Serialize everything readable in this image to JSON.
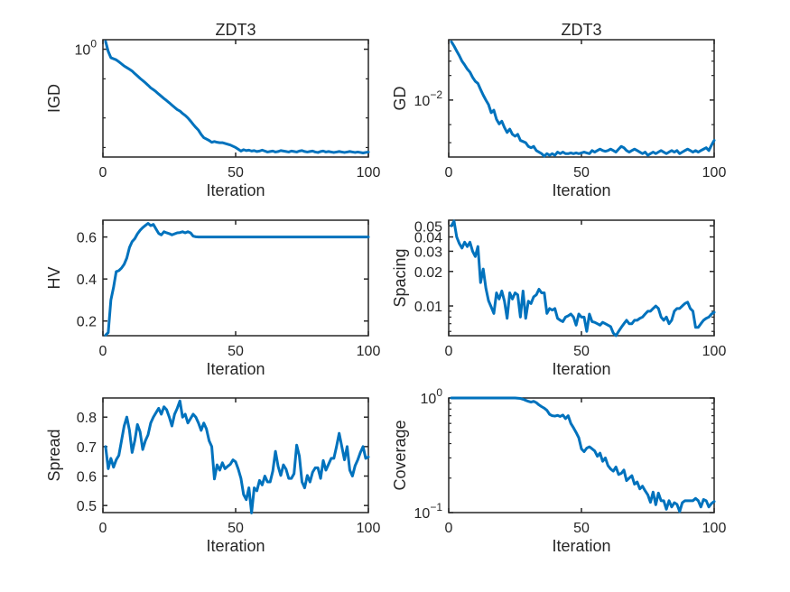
{
  "figure": {
    "background": "#ffffff",
    "line_color": "#0072BD",
    "axis_color": "#262626",
    "text_color": "#262626"
  },
  "chart_data": [
    {
      "type": "line",
      "title": "ZDT3",
      "xlabel": "Iteration",
      "ylabel": "IGD",
      "yscale": "log",
      "xlim": [
        0,
        100
      ],
      "ylim": [
        0.08,
        1.25
      ],
      "xticks": [
        {
          "v": 0,
          "label": "0"
        },
        {
          "v": 50,
          "label": "50"
        },
        {
          "v": 100,
          "label": "100"
        }
      ],
      "yticks": [
        {
          "v": 1,
          "base": "10",
          "exp": "0"
        }
      ],
      "yminor": [
        0.5,
        0.2,
        0.1
      ],
      "x_range": [
        1,
        100
      ],
      "y": [
        1.2,
        0.95,
        0.82,
        0.8,
        0.78,
        0.745,
        0.71,
        0.675,
        0.65,
        0.625,
        0.6,
        0.565,
        0.535,
        0.505,
        0.48,
        0.455,
        0.43,
        0.405,
        0.388,
        0.37,
        0.35,
        0.332,
        0.315,
        0.3,
        0.285,
        0.27,
        0.256,
        0.243,
        0.235,
        0.222,
        0.212,
        0.2,
        0.186,
        0.172,
        0.16,
        0.15,
        0.136,
        0.126,
        0.122,
        0.118,
        0.113,
        0.115,
        0.113,
        0.112,
        0.112,
        0.11,
        0.108,
        0.106,
        0.103,
        0.1,
        0.096,
        0.092,
        0.095,
        0.093,
        0.094,
        0.092,
        0.093,
        0.091,
        0.092,
        0.094,
        0.092,
        0.09,
        0.091,
        0.092,
        0.09,
        0.091,
        0.093,
        0.092,
        0.091,
        0.09,
        0.092,
        0.091,
        0.09,
        0.092,
        0.093,
        0.091,
        0.09,
        0.091,
        0.092,
        0.09,
        0.089,
        0.091,
        0.092,
        0.09,
        0.091,
        0.09,
        0.089,
        0.09,
        0.091,
        0.09,
        0.089,
        0.09,
        0.091,
        0.09,
        0.089,
        0.09,
        0.089,
        0.088,
        0.089,
        0.09
      ]
    },
    {
      "type": "line",
      "title": "ZDT3",
      "xlabel": "Iteration",
      "ylabel": "GD",
      "yscale": "log",
      "xlim": [
        0,
        100
      ],
      "ylim": [
        0.002,
        0.055
      ],
      "xticks": [
        {
          "v": 0,
          "label": "0"
        },
        {
          "v": 50,
          "label": "50"
        },
        {
          "v": 100,
          "label": "100"
        }
      ],
      "yticks": [
        {
          "v": 0.01,
          "base": "10",
          "exp": "-2"
        }
      ],
      "yminor": [
        0.04,
        0.03,
        0.02,
        0.005,
        0.003
      ],
      "x_range": [
        1,
        100
      ],
      "y": [
        0.052,
        0.046,
        0.04,
        0.035,
        0.03,
        0.027,
        0.024,
        0.022,
        0.019,
        0.017,
        0.016,
        0.0135,
        0.0115,
        0.01,
        0.0088,
        0.007,
        0.0075,
        0.0058,
        0.0051,
        0.0055,
        0.0046,
        0.004,
        0.0044,
        0.0038,
        0.0036,
        0.0038,
        0.0032,
        0.0031,
        0.003,
        0.0027,
        0.0026,
        0.0027,
        0.0024,
        0.0023,
        0.0022,
        0.00205,
        0.0022,
        0.0021,
        0.0022,
        0.0021,
        0.0023,
        0.0022,
        0.0023,
        0.0022,
        0.0022,
        0.00225,
        0.0022,
        0.00225,
        0.0022,
        0.00225,
        0.0023,
        0.00225,
        0.0022,
        0.0024,
        0.0023,
        0.0024,
        0.0025,
        0.0024,
        0.00235,
        0.0024,
        0.0025,
        0.0024,
        0.0023,
        0.0025,
        0.0027,
        0.0026,
        0.0024,
        0.0023,
        0.0024,
        0.0025,
        0.0024,
        0.0023,
        0.0022,
        0.0023,
        0.0021,
        0.0022,
        0.0023,
        0.0022,
        0.0023,
        0.0024,
        0.0023,
        0.0022,
        0.0023,
        0.0024,
        0.0023,
        0.0024,
        0.0022,
        0.0023,
        0.0024,
        0.0025,
        0.0024,
        0.0023,
        0.0024,
        0.0023,
        0.0024,
        0.0025,
        0.0026,
        0.0024,
        0.0028,
        0.0032
      ]
    },
    {
      "type": "line",
      "title": "",
      "xlabel": "Iteration",
      "ylabel": "HV",
      "yscale": "linear",
      "xlim": [
        0,
        100
      ],
      "ylim": [
        0.13,
        0.68
      ],
      "xticks": [
        {
          "v": 0,
          "label": "0"
        },
        {
          "v": 50,
          "label": "50"
        },
        {
          "v": 100,
          "label": "100"
        }
      ],
      "yticks": [
        {
          "v": 0.2,
          "label": "0.2"
        },
        {
          "v": 0.4,
          "label": "0.4"
        },
        {
          "v": 0.6,
          "label": "0.6"
        }
      ],
      "yminor": [],
      "x_range": [
        1,
        100
      ],
      "y": [
        0.133,
        0.145,
        0.3,
        0.36,
        0.435,
        0.44,
        0.452,
        0.47,
        0.5,
        0.55,
        0.578,
        0.592,
        0.615,
        0.632,
        0.645,
        0.655,
        0.665,
        0.654,
        0.66,
        0.638,
        0.617,
        0.61,
        0.625,
        0.62,
        0.616,
        0.61,
        0.615,
        0.62,
        0.621,
        0.625,
        0.62,
        0.625,
        0.62,
        0.604,
        0.601,
        0.6,
        0.6,
        0.6,
        0.6,
        0.6,
        0.6,
        0.6,
        0.6,
        0.6,
        0.6,
        0.6,
        0.6,
        0.6,
        0.6,
        0.6,
        0.6,
        0.6,
        0.6,
        0.6,
        0.6,
        0.6,
        0.6,
        0.6,
        0.6,
        0.6,
        0.6,
        0.6,
        0.6,
        0.6,
        0.6,
        0.6,
        0.6,
        0.6,
        0.6,
        0.6,
        0.6,
        0.6,
        0.6,
        0.6,
        0.6,
        0.6,
        0.6,
        0.6,
        0.6,
        0.6,
        0.6,
        0.6,
        0.6,
        0.6,
        0.6,
        0.6,
        0.6,
        0.6,
        0.6,
        0.6,
        0.6,
        0.6,
        0.6,
        0.6,
        0.6,
        0.6,
        0.6,
        0.6,
        0.6,
        0.6
      ]
    },
    {
      "type": "line",
      "title": "",
      "xlabel": "Iteration",
      "ylabel": "Spacing",
      "yscale": "log",
      "xlim": [
        0,
        100
      ],
      "ylim": [
        0.0055,
        0.056
      ],
      "xticks": [
        {
          "v": 0,
          "label": "0"
        },
        {
          "v": 50,
          "label": "50"
        },
        {
          "v": 100,
          "label": "100"
        }
      ],
      "yticks": [
        {
          "v": 0.05,
          "label": "0.05"
        },
        {
          "v": 0.04,
          "label": "0.04"
        },
        {
          "v": 0.03,
          "label": "0.03"
        },
        {
          "v": 0.02,
          "label": "0.02"
        },
        {
          "v": 0.01,
          "label": "0.01"
        }
      ],
      "yminor": [
        0.009,
        0.008,
        0.007,
        0.006
      ],
      "x_range": [
        1,
        100
      ],
      "y": [
        0.05,
        0.055,
        0.04,
        0.035,
        0.032,
        0.036,
        0.033,
        0.036,
        0.03,
        0.027,
        0.033,
        0.016,
        0.021,
        0.0143,
        0.0111,
        0.0098,
        0.0086,
        0.013,
        0.0115,
        0.0135,
        0.011,
        0.0078,
        0.013,
        0.0115,
        0.013,
        0.0125,
        0.008,
        0.0135,
        0.0078,
        0.011,
        0.0105,
        0.012,
        0.0125,
        0.014,
        0.013,
        0.013,
        0.0086,
        0.0095,
        0.0092,
        0.0095,
        0.0078,
        0.0075,
        0.0073,
        0.008,
        0.0082,
        0.0085,
        0.008,
        0.0068,
        0.0085,
        0.008,
        0.008,
        0.006,
        0.0085,
        0.0073,
        0.0072,
        0.007,
        0.0068,
        0.0072,
        0.007,
        0.0068,
        0.0066,
        0.0058,
        0.0055,
        0.006,
        0.0065,
        0.007,
        0.0075,
        0.007,
        0.007,
        0.0075,
        0.0075,
        0.0078,
        0.008,
        0.0085,
        0.009,
        0.009,
        0.0095,
        0.01,
        0.0095,
        0.008,
        0.0075,
        0.008,
        0.007,
        0.0075,
        0.009,
        0.0095,
        0.0095,
        0.01,
        0.0105,
        0.0108,
        0.0095,
        0.009,
        0.0065,
        0.0065,
        0.007,
        0.0075,
        0.0078,
        0.008,
        0.0085,
        0.0088
      ]
    },
    {
      "type": "line",
      "title": "",
      "xlabel": "Iteration",
      "ylabel": "Spread",
      "yscale": "linear",
      "xlim": [
        0,
        100
      ],
      "ylim": [
        0.476,
        0.865
      ],
      "xticks": [
        {
          "v": 0,
          "label": "0"
        },
        {
          "v": 50,
          "label": "50"
        },
        {
          "v": 100,
          "label": "100"
        }
      ],
      "yticks": [
        {
          "v": 0.5,
          "label": "0.5"
        },
        {
          "v": 0.6,
          "label": "0.6"
        },
        {
          "v": 0.7,
          "label": "0.7"
        },
        {
          "v": 0.8,
          "label": "0.8"
        }
      ],
      "yminor": [],
      "x_range": [
        1,
        100
      ],
      "y": [
        0.7,
        0.625,
        0.66,
        0.63,
        0.655,
        0.67,
        0.72,
        0.77,
        0.8,
        0.755,
        0.68,
        0.72,
        0.775,
        0.75,
        0.69,
        0.72,
        0.74,
        0.78,
        0.8,
        0.815,
        0.83,
        0.81,
        0.835,
        0.825,
        0.8,
        0.77,
        0.81,
        0.83,
        0.855,
        0.8,
        0.81,
        0.78,
        0.795,
        0.81,
        0.8,
        0.78,
        0.755,
        0.78,
        0.76,
        0.72,
        0.7,
        0.59,
        0.638,
        0.62,
        0.645,
        0.625,
        0.633,
        0.64,
        0.655,
        0.648,
        0.623,
        0.592,
        0.537,
        0.52,
        0.56,
        0.475,
        0.56,
        0.55,
        0.585,
        0.57,
        0.6,
        0.58,
        0.58,
        0.617,
        0.684,
        0.633,
        0.602,
        0.638,
        0.623,
        0.592,
        0.592,
        0.608,
        0.705,
        0.668,
        0.58,
        0.56,
        0.602,
        0.58,
        0.613,
        0.628,
        0.628,
        0.592,
        0.653,
        0.62,
        0.64,
        0.66,
        0.66,
        0.7,
        0.745,
        0.7,
        0.655,
        0.7,
        0.62,
        0.6,
        0.635,
        0.655,
        0.68,
        0.7,
        0.66,
        0.665
      ]
    },
    {
      "type": "line",
      "title": "",
      "xlabel": "Iteration",
      "ylabel": "Coverage",
      "yscale": "log",
      "xlim": [
        0,
        100
      ],
      "ylim": [
        0.1,
        1.0
      ],
      "xticks": [
        {
          "v": 0,
          "label": "0"
        },
        {
          "v": 50,
          "label": "50"
        },
        {
          "v": 100,
          "label": "100"
        }
      ],
      "yticks": [
        {
          "v": 1,
          "base": "10",
          "exp": "0"
        },
        {
          "v": 0.1,
          "base": "10",
          "exp": "-1"
        }
      ],
      "yminor": [
        0.9,
        0.8,
        0.7,
        0.6,
        0.5,
        0.4,
        0.3,
        0.2
      ],
      "x_range": [
        1,
        100
      ],
      "y": [
        1.0,
        1.0,
        1.0,
        1.0,
        1.0,
        1.0,
        1.0,
        1.0,
        1.0,
        1.0,
        1.0,
        1.0,
        1.0,
        1.0,
        1.0,
        1.0,
        1.0,
        1.0,
        1.0,
        1.0,
        1.0,
        1.0,
        1.0,
        1.0,
        1.0,
        0.995,
        0.99,
        0.975,
        0.955,
        0.935,
        0.92,
        0.935,
        0.91,
        0.87,
        0.84,
        0.815,
        0.78,
        0.72,
        0.7,
        0.695,
        0.705,
        0.69,
        0.71,
        0.66,
        0.7,
        0.6,
        0.55,
        0.5,
        0.45,
        0.36,
        0.34,
        0.365,
        0.375,
        0.36,
        0.345,
        0.31,
        0.33,
        0.28,
        0.3,
        0.257,
        0.24,
        0.23,
        0.25,
        0.215,
        0.22,
        0.235,
        0.19,
        0.2,
        0.21,
        0.177,
        0.185,
        0.161,
        0.17,
        0.155,
        0.143,
        0.123,
        0.151,
        0.117,
        0.148,
        0.127,
        0.127,
        0.107,
        0.127,
        0.112,
        0.122,
        0.118,
        0.102,
        0.122,
        0.127,
        0.127,
        0.127,
        0.127,
        0.133,
        0.127,
        0.112,
        0.13,
        0.127,
        0.112,
        0.12,
        0.125
      ]
    }
  ]
}
